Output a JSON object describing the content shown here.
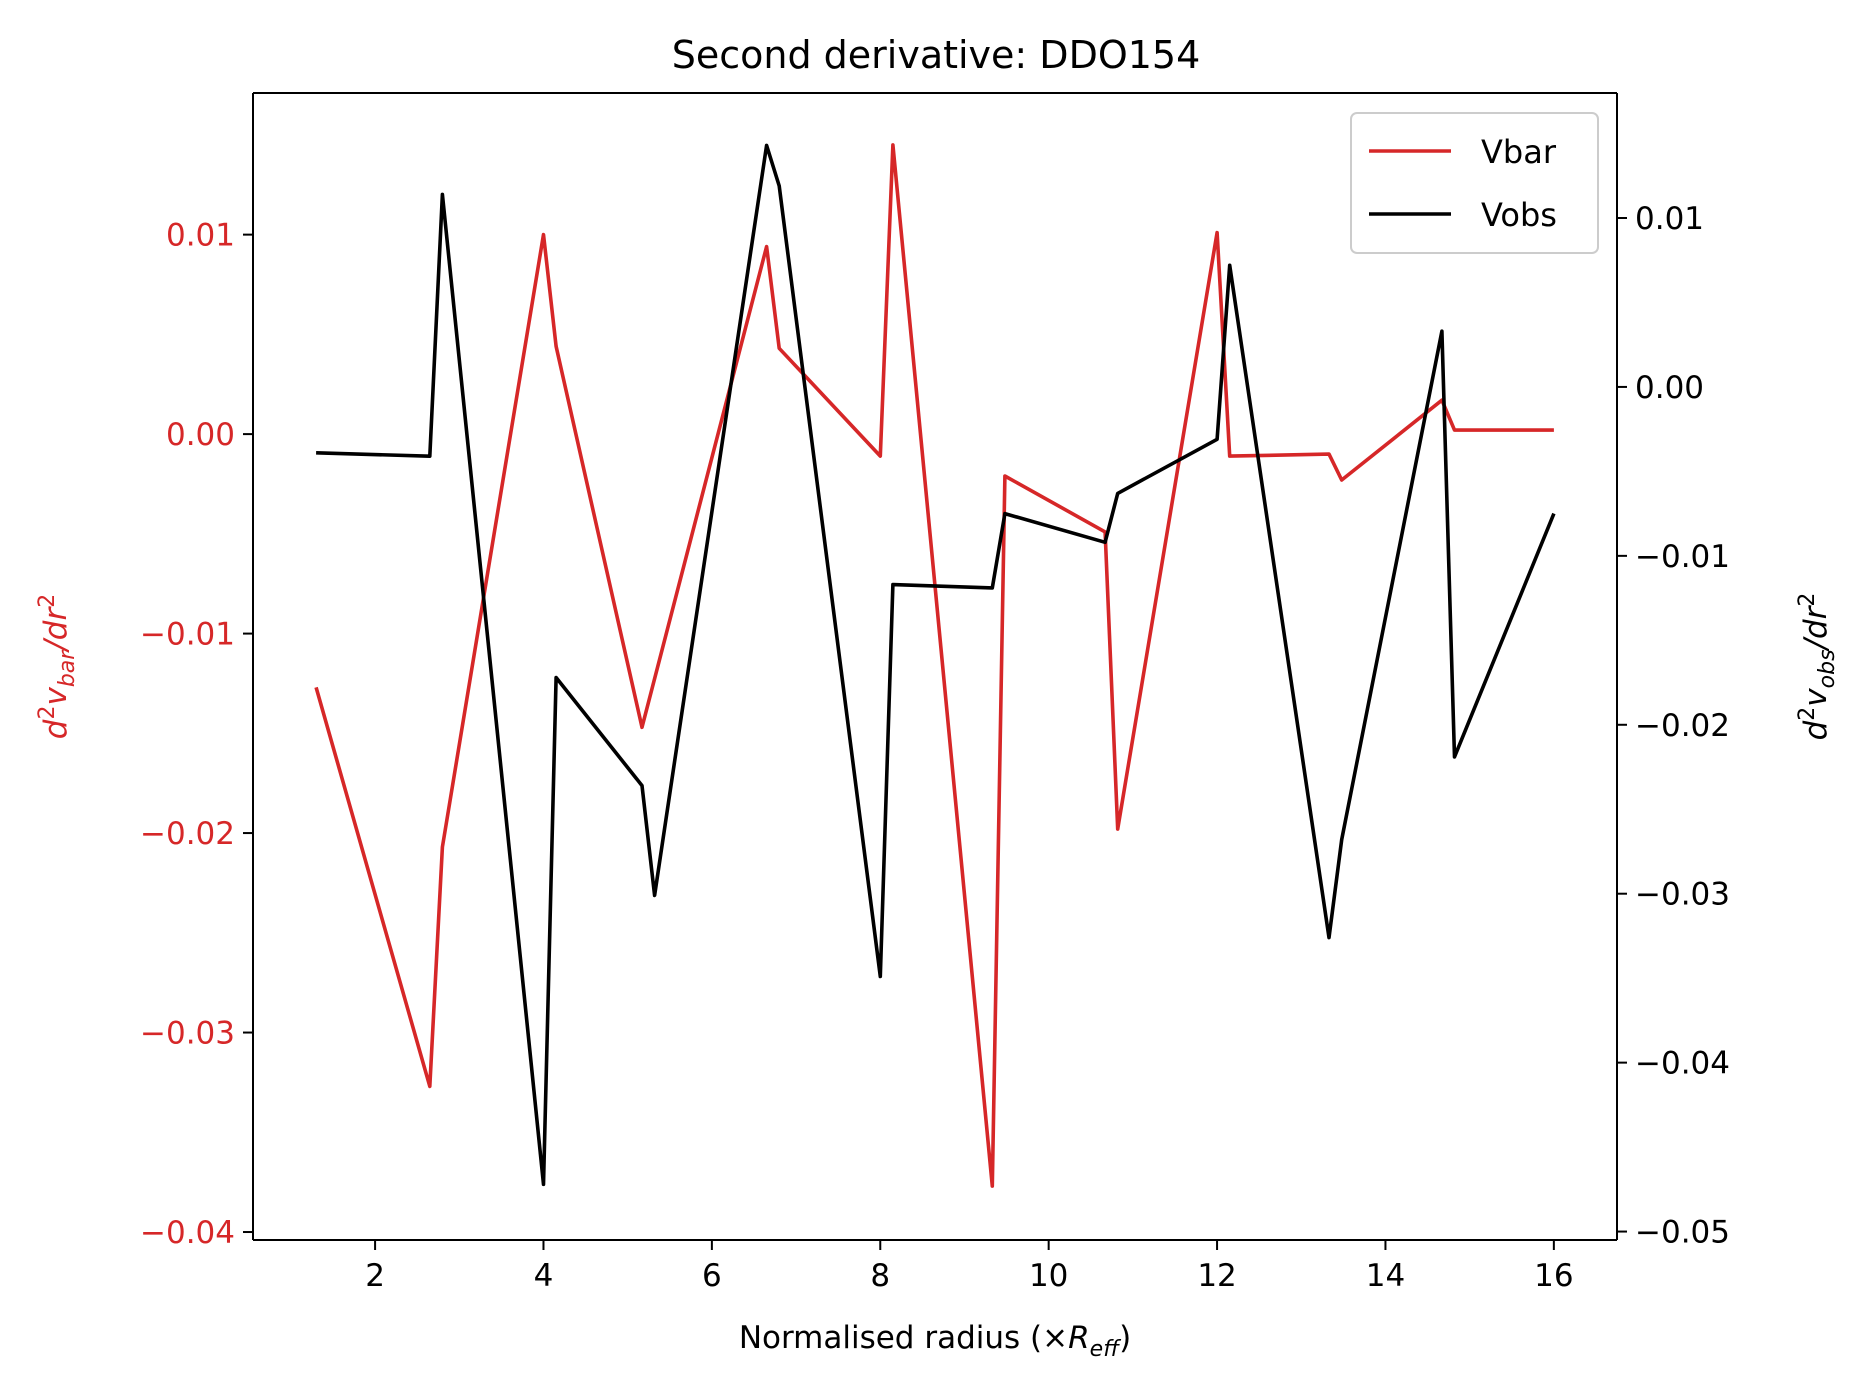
{
  "chart_data": {
    "type": "line",
    "title": "Second derivative: DDO154",
    "xlabel": "Normalised radius (×R_eff)",
    "xlabel_parts": {
      "prefix": "Normalised radius (×",
      "italic": "R",
      "sub": "eff",
      "suffix": ")"
    },
    "ylabel_left": "d^2v_bar/dr^2",
    "ylabel_left_parts": {
      "d": "d",
      "sup": "2",
      "v": "v",
      "sub": "bar",
      "tail": "/dr",
      "sup2": "2"
    },
    "ylabel_right": "d^2v_obs/dr^2",
    "ylabel_right_parts": {
      "d": "d",
      "sup": "2",
      "v": "v",
      "sub": "obs",
      "tail": "/dr",
      "sup2": "2"
    },
    "xlim": [
      0.55,
      16.75
    ],
    "ylim_left": [
      -0.0404,
      0.0171
    ],
    "ylim_right": [
      -0.0505,
      0.0174
    ],
    "x_ticks": [
      2,
      4,
      6,
      8,
      10,
      12,
      14,
      16
    ],
    "x_tick_labels": [
      "2",
      "4",
      "6",
      "8",
      "10",
      "12",
      "14",
      "16"
    ],
    "y_left_ticks": [
      0.01,
      0.0,
      -0.01,
      -0.02,
      -0.03,
      -0.04
    ],
    "y_left_tick_labels": [
      "0.01",
      "0.00",
      "−0.01",
      "−0.02",
      "−0.03",
      "−0.04"
    ],
    "y_right_ticks": [
      0.01,
      0.0,
      -0.01,
      -0.02,
      -0.03,
      -0.04,
      -0.05
    ],
    "y_right_tick_labels": [
      "0.01",
      "0.00",
      "−0.01",
      "−0.02",
      "−0.03",
      "−0.04",
      "−0.05"
    ],
    "grid": false,
    "legend_position": "top-right",
    "series": [
      {
        "name": "Vbar",
        "axis": "left",
        "color": "#d62728",
        "x": [
          1.3,
          2.65,
          2.8,
          4.0,
          4.15,
          5.17,
          6.65,
          6.8,
          8.0,
          8.15,
          9.33,
          9.48,
          10.67,
          10.82,
          12.0,
          12.15,
          13.33,
          13.48,
          14.67,
          14.82,
          16.0
        ],
        "y": [
          -0.0127,
          -0.0327,
          -0.0207,
          0.01,
          0.0044,
          -0.0147,
          0.0094,
          0.0043,
          -0.0011,
          0.0145,
          -0.0377,
          -0.0021,
          -0.0049,
          -0.0198,
          0.0101,
          -0.0011,
          -0.001,
          -0.0023,
          0.0017,
          0.0002,
          0.0002
        ]
      },
      {
        "name": "Vobs",
        "axis": "right",
        "color": "#000000",
        "x": [
          1.3,
          2.65,
          2.8,
          4.0,
          4.15,
          5.17,
          5.32,
          6.65,
          6.8,
          8.0,
          8.15,
          9.33,
          9.48,
          10.67,
          10.82,
          12.0,
          12.15,
          13.33,
          13.48,
          14.67,
          14.82,
          16.0
        ],
        "y": [
          -0.0039,
          -0.0041,
          0.0114,
          -0.0472,
          -0.0172,
          -0.0236,
          -0.0301,
          0.0143,
          0.0119,
          -0.0349,
          -0.0117,
          -0.0119,
          -0.0075,
          -0.0092,
          -0.0063,
          -0.0031,
          0.0072,
          -0.0326,
          -0.0268,
          0.0033,
          -0.0219,
          -0.0075
        ]
      }
    ]
  }
}
